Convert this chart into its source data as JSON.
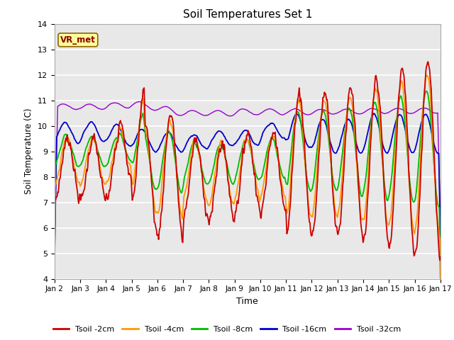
{
  "title": "Soil Temperatures Set 1",
  "xlabel": "Time",
  "ylabel": "Soil Temperature (C)",
  "ylim": [
    4.0,
    14.0
  ],
  "yticks": [
    4.0,
    5.0,
    6.0,
    7.0,
    8.0,
    9.0,
    10.0,
    11.0,
    12.0,
    13.0,
    14.0
  ],
  "xtick_labels": [
    "Jan 2",
    "Jan 3",
    "Jan 4",
    "Jan 5",
    "Jan 6",
    "Jan 7",
    "Jan 8",
    "Jan 9",
    "Jan 10",
    "Jan 11",
    "Jan 12",
    "Jan 13",
    "Jan 14",
    "Jan 15",
    "Jan 16",
    "Jan 17"
  ],
  "colors": {
    "Tsoil -2cm": "#cc0000",
    "Tsoil -4cm": "#ff9900",
    "Tsoil -8cm": "#00bb00",
    "Tsoil -16cm": "#0000cc",
    "Tsoil -32cm": "#9900cc"
  },
  "fig_facecolor": "#ffffff",
  "ax_facecolor": "#e8e8e8",
  "grid_color": "#ffffff",
  "legend_label": "VR_met",
  "legend_facecolor": "#ffff99",
  "legend_edgecolor": "#8B6500",
  "legend_textcolor": "#880000"
}
